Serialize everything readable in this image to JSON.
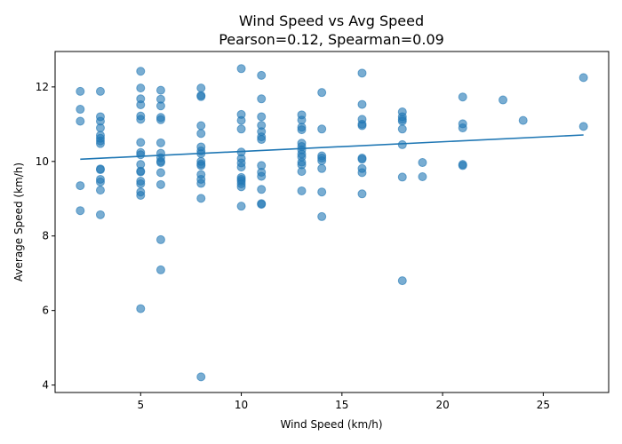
{
  "chart_data": {
    "type": "scatter",
    "title_line1": "Wind Speed vs Avg Speed",
    "title_line2": "Pearson=0.12, Spearman=0.09",
    "xlabel": "Wind Speed (km/h)",
    "ylabel": "Average Speed (km/h)",
    "xlim": [
      0.75,
      28.25
    ],
    "ylim": [
      3.8,
      12.95
    ],
    "xticks": [
      5,
      10,
      15,
      20,
      25
    ],
    "yticks": [
      4,
      6,
      8,
      10,
      12
    ],
    "grid": false,
    "point_color": "#1f77b4",
    "line_color": "#1f77b4",
    "trendline": {
      "x": [
        2,
        27
      ],
      "y": [
        10.06,
        10.71
      ]
    },
    "points": [
      [
        2,
        11.88
      ],
      [
        2,
        11.4
      ],
      [
        2,
        11.08
      ],
      [
        2,
        9.35
      ],
      [
        2,
        8.68
      ],
      [
        3,
        11.88
      ],
      [
        3,
        11.2
      ],
      [
        3,
        11.08
      ],
      [
        3,
        10.9
      ],
      [
        3,
        10.7
      ],
      [
        3,
        10.62
      ],
      [
        3,
        10.55
      ],
      [
        3,
        10.48
      ],
      [
        3,
        9.8
      ],
      [
        3,
        9.78
      ],
      [
        3,
        9.52
      ],
      [
        3,
        9.45
      ],
      [
        3,
        9.23
      ],
      [
        3,
        8.57
      ],
      [
        5,
        12.42
      ],
      [
        5,
        11.97
      ],
      [
        5,
        11.68
      ],
      [
        5,
        11.52
      ],
      [
        5,
        11.22
      ],
      [
        5,
        11.13
      ],
      [
        5,
        10.51
      ],
      [
        5,
        10.24
      ],
      [
        5,
        10.18
      ],
      [
        5,
        9.92
      ],
      [
        5,
        9.74
      ],
      [
        5,
        9.72
      ],
      [
        5,
        9.47
      ],
      [
        5,
        9.4
      ],
      [
        5,
        9.18
      ],
      [
        5,
        9.09
      ],
      [
        5,
        6.05
      ],
      [
        6,
        11.91
      ],
      [
        6,
        11.67
      ],
      [
        6,
        11.49
      ],
      [
        6,
        11.18
      ],
      [
        6,
        11.12
      ],
      [
        6,
        10.5
      ],
      [
        6,
        10.22
      ],
      [
        6,
        10.1
      ],
      [
        6,
        10.0
      ],
      [
        6,
        9.97
      ],
      [
        6,
        9.7
      ],
      [
        6,
        9.38
      ],
      [
        6,
        7.9
      ],
      [
        6,
        7.09
      ],
      [
        8,
        11.97
      ],
      [
        8,
        11.77
      ],
      [
        8,
        11.74
      ],
      [
        8,
        10.96
      ],
      [
        8,
        10.75
      ],
      [
        8,
        10.39
      ],
      [
        8,
        10.28
      ],
      [
        8,
        10.21
      ],
      [
        8,
        10.0
      ],
      [
        8,
        9.93
      ],
      [
        8,
        9.89
      ],
      [
        8,
        9.65
      ],
      [
        8,
        9.52
      ],
      [
        8,
        9.41
      ],
      [
        8,
        9.01
      ],
      [
        8,
        4.22
      ],
      [
        10,
        12.49
      ],
      [
        10,
        11.26
      ],
      [
        10,
        11.1
      ],
      [
        10,
        10.87
      ],
      [
        10,
        10.25
      ],
      [
        10,
        10.08
      ],
      [
        10,
        9.96
      ],
      [
        10,
        9.85
      ],
      [
        10,
        9.57
      ],
      [
        10,
        9.52
      ],
      [
        10,
        9.47
      ],
      [
        10,
        9.4
      ],
      [
        10,
        9.32
      ],
      [
        10,
        8.8
      ],
      [
        11,
        12.31
      ],
      [
        11,
        11.68
      ],
      [
        11,
        11.2
      ],
      [
        11,
        10.97
      ],
      [
        11,
        10.8
      ],
      [
        11,
        10.66
      ],
      [
        11,
        10.59
      ],
      [
        11,
        9.89
      ],
      [
        11,
        9.71
      ],
      [
        11,
        9.6
      ],
      [
        11,
        9.25
      ],
      [
        11,
        8.87
      ],
      [
        11,
        8.85
      ],
      [
        13,
        11.25
      ],
      [
        13,
        11.11
      ],
      [
        13,
        10.92
      ],
      [
        13,
        10.85
      ],
      [
        13,
        10.49
      ],
      [
        13,
        10.4
      ],
      [
        13,
        10.31
      ],
      [
        13,
        10.2
      ],
      [
        13,
        10.12
      ],
      [
        13,
        9.98
      ],
      [
        13,
        9.91
      ],
      [
        13,
        9.73
      ],
      [
        13,
        9.21
      ],
      [
        14,
        11.85
      ],
      [
        14,
        10.87
      ],
      [
        14,
        10.15
      ],
      [
        14,
        10.09
      ],
      [
        14,
        10.02
      ],
      [
        14,
        9.81
      ],
      [
        14,
        9.18
      ],
      [
        14,
        8.52
      ],
      [
        16,
        12.37
      ],
      [
        16,
        11.53
      ],
      [
        16,
        11.13
      ],
      [
        16,
        11.0
      ],
      [
        16,
        10.96
      ],
      [
        16,
        10.09
      ],
      [
        16,
        10.06
      ],
      [
        16,
        9.81
      ],
      [
        16,
        9.7
      ],
      [
        16,
        9.13
      ],
      [
        18,
        11.33
      ],
      [
        18,
        11.2
      ],
      [
        18,
        11.13
      ],
      [
        18,
        11.08
      ],
      [
        18,
        10.87
      ],
      [
        18,
        10.45
      ],
      [
        18,
        9.58
      ],
      [
        18,
        6.8
      ],
      [
        19,
        9.97
      ],
      [
        19,
        9.59
      ],
      [
        21,
        11.73
      ],
      [
        21,
        11.01
      ],
      [
        21,
        10.9
      ],
      [
        21,
        9.92
      ],
      [
        21,
        9.89
      ],
      [
        23,
        11.65
      ],
      [
        24,
        11.1
      ],
      [
        27,
        12.25
      ],
      [
        27,
        10.94
      ]
    ]
  }
}
